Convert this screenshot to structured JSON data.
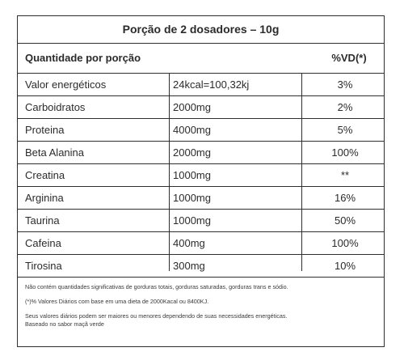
{
  "title": "Porção de 2 dosadores – 10g",
  "header": {
    "label": "Quantidade por porção",
    "vd": "%VD(*)"
  },
  "rows": [
    {
      "name": "Valor energéticos",
      "amount": "24kcal=100,32kj",
      "vd": "3%"
    },
    {
      "name": "Carboidratos",
      "amount": "2000mg",
      "vd": "2%"
    },
    {
      "name": "Proteina",
      "amount": "4000mg",
      "vd": "5%"
    },
    {
      "name": "Beta Alanina",
      "amount": "2000mg",
      "vd": "100%"
    },
    {
      "name": "Creatina",
      "amount": "1000mg",
      "vd": "**"
    },
    {
      "name": "Arginina",
      "amount": "1000mg",
      "vd": "16%"
    },
    {
      "name": "Taurina",
      "amount": "1000mg",
      "vd": "50%"
    },
    {
      "name": "Cafeina",
      "amount": "400mg",
      "vd": "100%"
    },
    {
      "name": "Tirosina",
      "amount": "300mg",
      "vd": "10%"
    }
  ],
  "notes": {
    "line1": "Não contém quantidades significativas de gorduras totais, gorduras saturadas, gorduras trans e sódio.",
    "line2": "(*)% Valores Diários com base em uma dieta de 2000Kacal ou 8400KJ.",
    "line3": "Seus valores diários podem ser maiores ou menores dependendo de suas necessidades energéticas.",
    "line4": "Baseado no sabor maçã verde"
  }
}
